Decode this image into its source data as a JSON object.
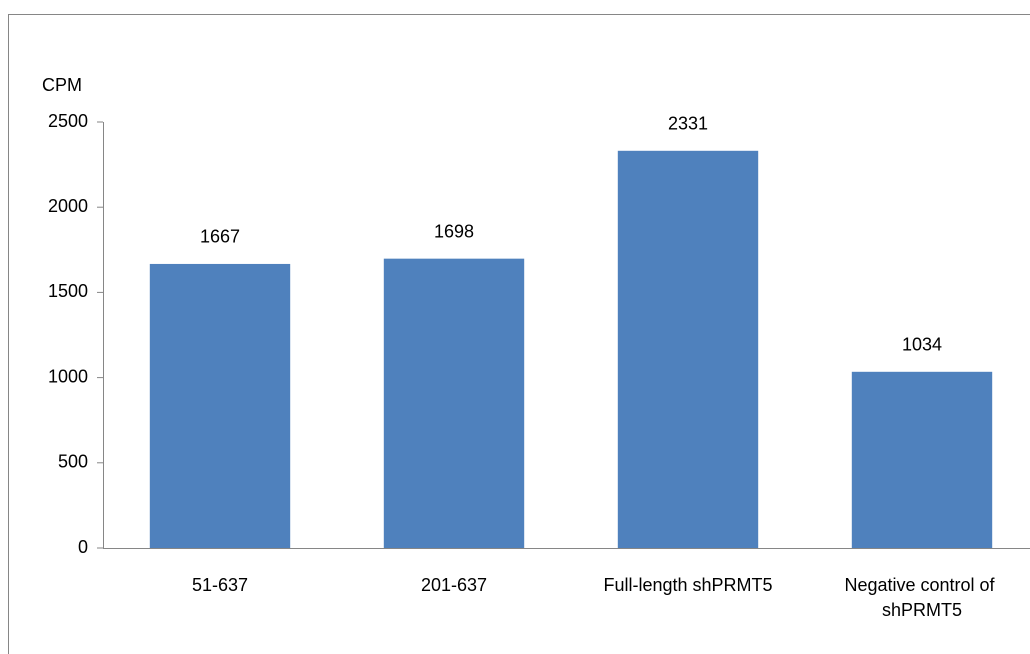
{
  "chart_data": {
    "type": "bar",
    "y_axis_label": "CPM",
    "categories": [
      "51-637",
      "201-637",
      "Full-length shPRMT5",
      "Negative control of shPRMT5"
    ],
    "values": [
      1667,
      1698,
      2331,
      1034
    ],
    "color": "#4f81bd",
    "ylim": [
      0,
      2500
    ],
    "yticks": [
      0,
      500,
      1000,
      1500,
      2000,
      2500
    ],
    "grid": false,
    "data_labels": true
  }
}
